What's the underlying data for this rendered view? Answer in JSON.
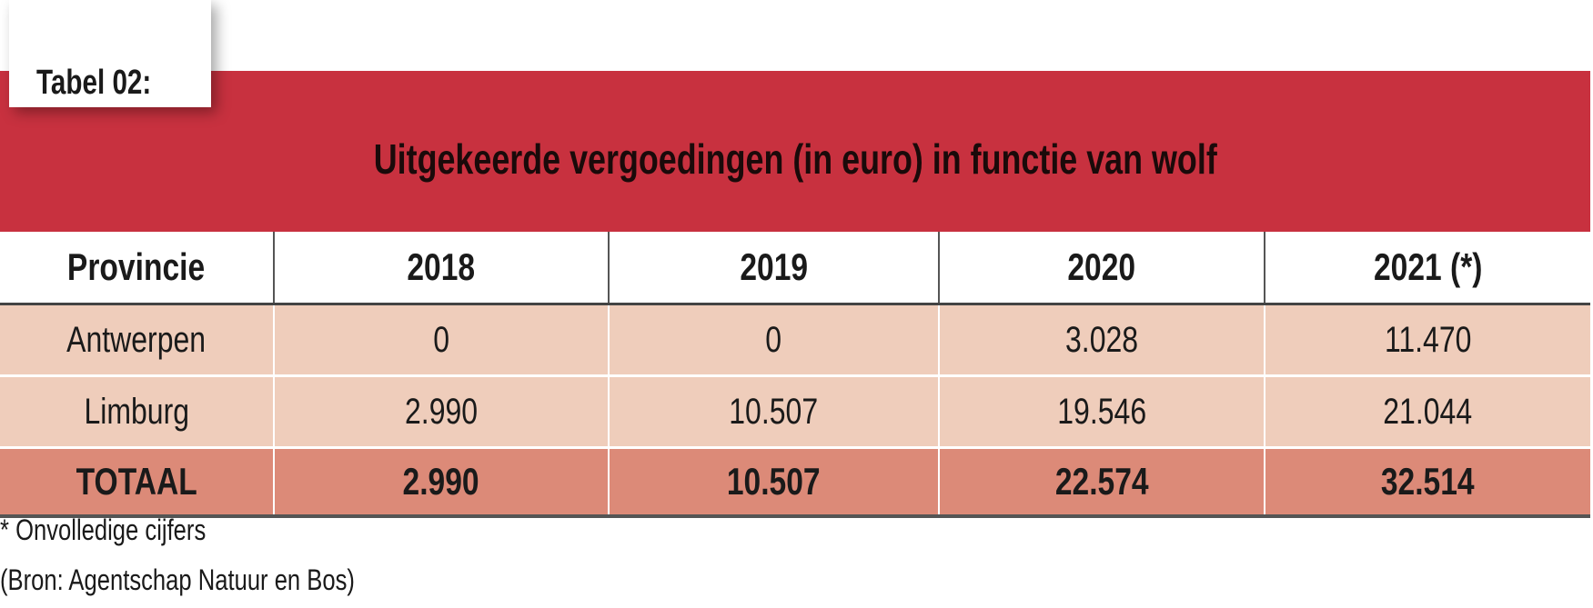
{
  "label": "Tabel 02:",
  "title": "Uitgekeerde vergoedingen (in euro) in functie van wolf",
  "colors": {
    "header_band": "#c8313f",
    "row": "#efcdbb",
    "total_row": "#dc8a78"
  },
  "chart_data": {
    "type": "table",
    "title": "Uitgekeerde vergoedingen (in euro) in functie van wolf",
    "columns": [
      "Provincie",
      "2018",
      "2019",
      "2020",
      "2021 (*)"
    ],
    "rows": [
      [
        "Antwerpen",
        "0",
        "0",
        "3.028",
        "11.470"
      ],
      [
        "Limburg",
        "2.990",
        "10.507",
        "19.546",
        "21.044"
      ]
    ],
    "total": [
      "TOTAAL",
      "2.990",
      "10.507",
      "22.574",
      "32.514"
    ]
  },
  "footnotes": [
    "* Onvolledige cijfers",
    "(Bron: Agentschap Natuur en Bos)"
  ]
}
